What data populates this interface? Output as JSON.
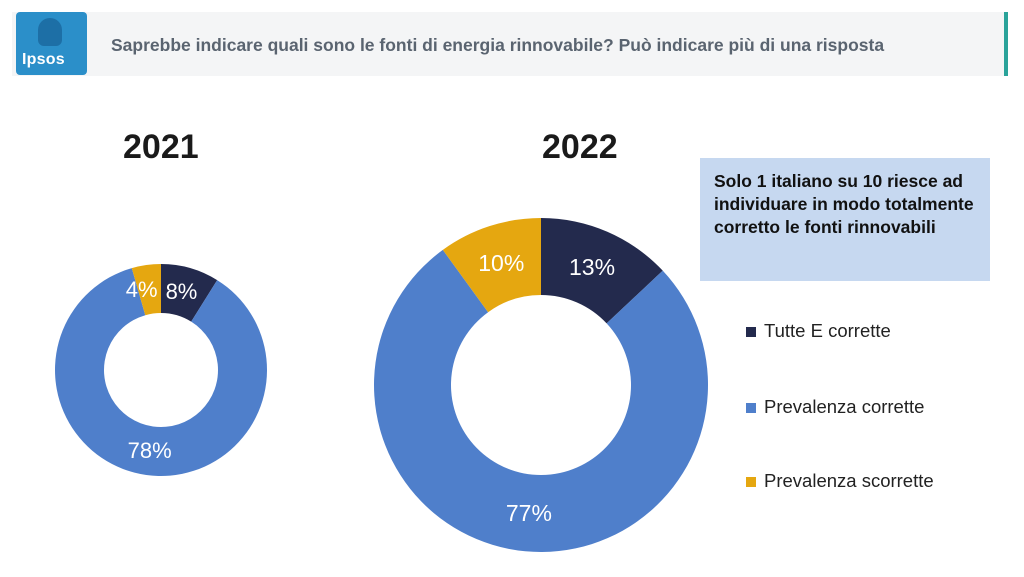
{
  "header": {
    "logo_text": "Ipsos",
    "question": "Saprebbe indicare quali sono le fonti di energia rinnovabile? Può indicare più di una risposta"
  },
  "note": "Solo 1 italiano su 10 riesce ad individuare in modo totalmente corretto le fonti rinnovabili",
  "colors": {
    "tutte_corrette": "#232a4d",
    "prevalenza_corrette": "#4f7fcb",
    "prevalenza_scorrette": "#e5a710",
    "header_accent": "#2aa39a",
    "note_bg": "#c6d8f0"
  },
  "chart_data": [
    {
      "type": "pie",
      "title": "2021",
      "categories": [
        "Tutte E corrette",
        "Prevalenza corrette",
        "Prevalenza scorrette"
      ],
      "values": [
        8,
        78,
        4
      ],
      "labels": [
        "8%",
        "78%",
        "4%"
      ]
    },
    {
      "type": "pie",
      "title": "2022",
      "categories": [
        "Tutte E corrette",
        "Prevalenza corrette",
        "Prevalenza scorrette"
      ],
      "values": [
        13,
        77,
        10
      ],
      "labels": [
        "13%",
        "77%",
        "10%"
      ]
    }
  ],
  "legend": [
    {
      "label": "Tutte E corrette",
      "color": "#232a4d"
    },
    {
      "label": "Prevalenza corrette",
      "color": "#4f7fcb"
    },
    {
      "label": "Prevalenza scorrette",
      "color": "#e5a710"
    }
  ]
}
